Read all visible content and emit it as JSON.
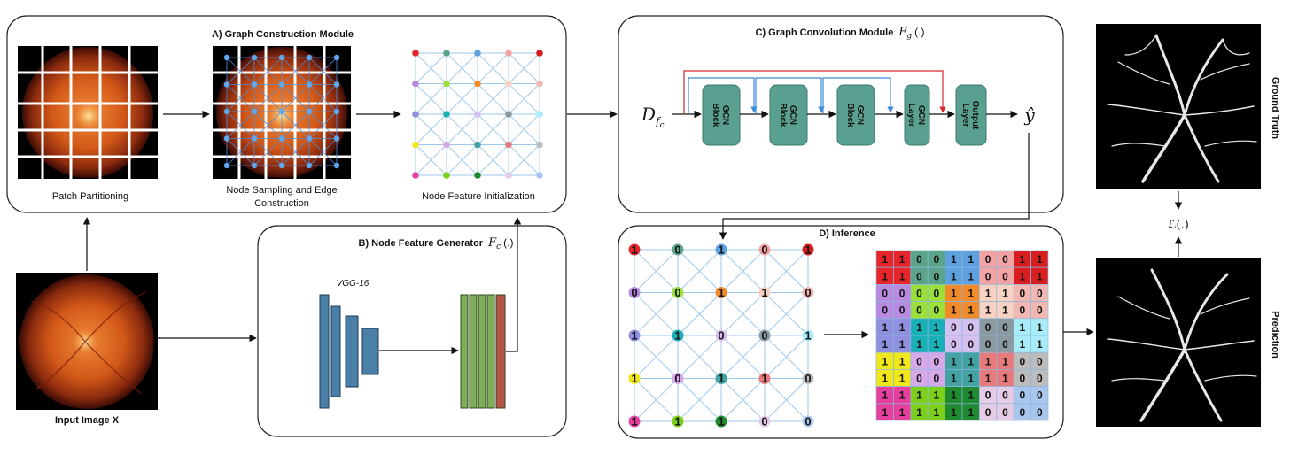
{
  "modules": {
    "a": {
      "title": "A)  Graph Construction Module",
      "patch": "Patch Partitioning",
      "sampling": "Node Sampling and Edge",
      "sampling2": "Construction",
      "nodefeat": "Node Feature Initialization"
    },
    "b": {
      "title": "B)  Node Feature Generator",
      "math": "F",
      "sub": "c",
      "args": "(.)",
      "vgg": "VGG-16"
    },
    "c": {
      "title": "C)  Graph Convolution Module",
      "math": "F",
      "sub": "g",
      "args": "(.)",
      "input": "D",
      "input_sub": "f",
      "input_subsub": "c",
      "output": "ŷ",
      "blocks": [
        "GCN Block",
        "GCN Block",
        "GCN Block",
        "GCN Layer",
        "Output Layer"
      ]
    },
    "d": {
      "title": "D) Inference"
    },
    "input_label": "Input Image X",
    "ground_truth": "Ground Truth",
    "prediction": "Prediction",
    "loss": "ℒ(.)"
  },
  "node_colors": {
    "a_grid": [
      [
        "#e5252a",
        "#5aa58a",
        "#5ea0e0",
        "#f4a3a5",
        "#d81e1e"
      ],
      [
        "#b88ae0",
        "#9adf3a",
        "#f08a2a",
        "#f7d2c2",
        "#f3b7b2"
      ],
      [
        "#9090e0",
        "#1ab0b8",
        "#d5c0f0",
        "#8a9aa0",
        "#a7ecf6"
      ],
      [
        "#f0e81c",
        "#d6a8e8",
        "#43a3a3",
        "#e77a7a",
        "#bcbcbc"
      ],
      [
        "#e6409e",
        "#7ccf1a",
        "#1f8a2f",
        "#e5cbe5",
        "#a9c6ed"
      ]
    ]
  },
  "inference_nodes": [
    [
      "1",
      "0",
      "1",
      "0",
      "1"
    ],
    [
      "0",
      "0",
      "1",
      "1",
      "0"
    ],
    [
      "1",
      "1",
      "0",
      "0",
      "1"
    ],
    [
      "1",
      "0",
      "1",
      "1",
      "0"
    ],
    [
      "1",
      "1",
      "1",
      "0",
      "0"
    ]
  ],
  "inference_grid": [
    [
      "1",
      "1",
      "0",
      "0",
      "1",
      "1",
      "0",
      "0",
      "1",
      "1"
    ],
    [
      "1",
      "1",
      "0",
      "0",
      "1",
      "1",
      "0",
      "0",
      "1",
      "1"
    ],
    [
      "0",
      "0",
      "0",
      "0",
      "1",
      "1",
      "1",
      "1",
      "0",
      "0"
    ],
    [
      "0",
      "0",
      "0",
      "0",
      "1",
      "1",
      "1",
      "1",
      "0",
      "0"
    ],
    [
      "1",
      "1",
      "1",
      "1",
      "0",
      "0",
      "0",
      "0",
      "1",
      "1"
    ],
    [
      "1",
      "1",
      "1",
      "1",
      "0",
      "0",
      "0",
      "0",
      "1",
      "1"
    ],
    [
      "1",
      "1",
      "0",
      "0",
      "1",
      "1",
      "1",
      "1",
      "0",
      "0"
    ],
    [
      "1",
      "1",
      "0",
      "0",
      "1",
      "1",
      "1",
      "1",
      "0",
      "0"
    ],
    [
      "1",
      "1",
      "1",
      "1",
      "1",
      "1",
      "0",
      "0",
      "0",
      "0"
    ],
    [
      "1",
      "1",
      "1",
      "1",
      "1",
      "1",
      "0",
      "0",
      "0",
      "0"
    ]
  ]
}
